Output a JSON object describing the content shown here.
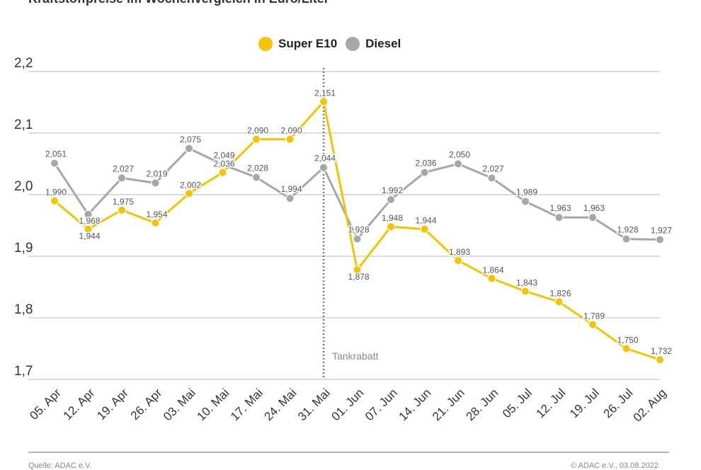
{
  "header": {
    "subtitle": "Kraftstoffpreise im Wochenvergleich in Euro/Liter"
  },
  "legend": {
    "items": [
      "Super E10",
      "Diesel"
    ]
  },
  "annotation": {
    "label": "Tankrabatt",
    "at": "31. Mai"
  },
  "footer": {
    "source": "Quelle: ADAC e.V.",
    "date": "© ADAC e.V., 03.08.2022"
  },
  "colors": {
    "super": "#f5c400",
    "diesel": "#a7a7a7",
    "grid": "#c8c8c8",
    "text": "#555555"
  },
  "chart_data": {
    "type": "line",
    "categories": [
      "05. Apr",
      "12. Apr",
      "19. Apr",
      "26. Apr",
      "03. Mai",
      "10. Mai",
      "17. Mai",
      "24. Mai",
      "31. Mai",
      "01. Jun",
      "07. Jun",
      "14. Jun",
      "21. Jun",
      "28. Jun",
      "05. Jul",
      "12. Jul",
      "19. Jul",
      "26. Jul",
      "02. Aug"
    ],
    "series": [
      {
        "name": "Super E10",
        "values": [
          1.99,
          1.944,
          1.975,
          1.954,
          2.002,
          2.036,
          2.09,
          2.09,
          2.151,
          1.878,
          1.948,
          1.944,
          1.893,
          1.864,
          1.843,
          1.826,
          1.789,
          1.75,
          1.732
        ],
        "labels": [
          "1,990",
          "1,944",
          "1,975",
          "1,954",
          "2,002",
          "2,036",
          "2,090",
          "2,090",
          "2,151",
          "1,878",
          "1,948",
          "1,944",
          "1,893",
          "1,864",
          "1,843",
          "1,826",
          "1,789",
          "1,750",
          "1,732"
        ]
      },
      {
        "name": "Diesel",
        "values": [
          2.051,
          1.968,
          2.027,
          2.019,
          2.075,
          2.049,
          2.028,
          1.994,
          2.044,
          1.928,
          1.992,
          2.036,
          2.05,
          2.027,
          1.989,
          1.963,
          1.963,
          1.928,
          1.927
        ],
        "labels": [
          "2,051",
          "1,968",
          "2,027",
          "2,019",
          "2,075",
          "2,049",
          "2,028",
          "1,994",
          "2,044",
          "1,928",
          "1,992",
          "2,036",
          "2,050",
          "2,027",
          "1,989",
          "1,963",
          "1,963",
          "1,928",
          "1,927"
        ]
      }
    ],
    "yticks": [
      1.7,
      1.8,
      1.9,
      2.0,
      2.1,
      2.2
    ],
    "ytick_labels": [
      "1,7",
      "1,8",
      "1,9",
      "2,0",
      "2,1",
      "2,2"
    ],
    "ylim": [
      1.7,
      2.2
    ],
    "grid": true,
    "legend_position": "top-center"
  }
}
